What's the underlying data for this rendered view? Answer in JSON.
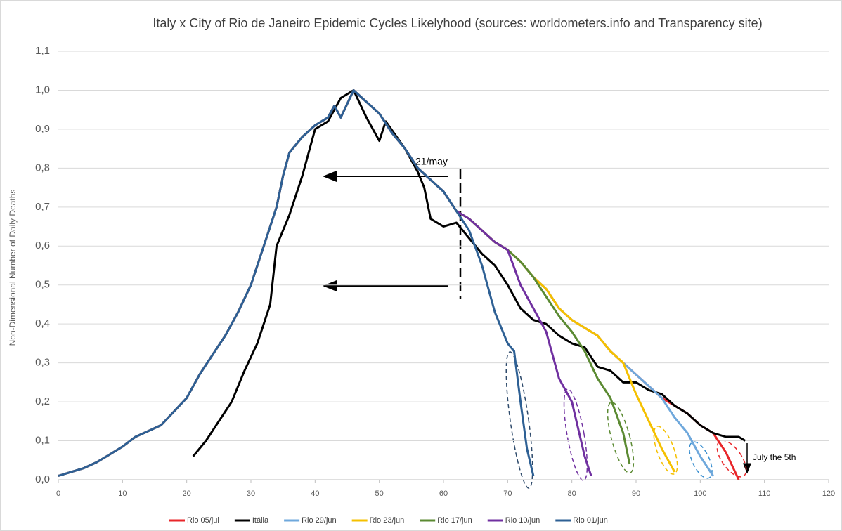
{
  "chart_data": {
    "type": "line",
    "title": "Italy x City of Rio de Janeiro Epidemic Cycles Likelyhood (sources: worldometers.info and Transparency site)",
    "y_label": "Non-Dimensional Number of Daily Deaths",
    "annotations": [
      "21/may",
      "July the 5th"
    ],
    "xlim": [
      0,
      120
    ],
    "xticks": [
      0,
      10,
      20,
      30,
      40,
      50,
      60,
      70,
      80,
      90,
      100,
      110,
      120
    ],
    "ylim": [
      0,
      1.1
    ],
    "yticks": [
      {
        "value": 0,
        "label": "0,0"
      },
      {
        "value": 0.1,
        "label": "0,1"
      },
      {
        "value": 0.2,
        "label": "0,2"
      },
      {
        "value": 0.3,
        "label": "0,3"
      },
      {
        "value": 0.4,
        "label": "0,4"
      },
      {
        "value": 0.5,
        "label": "0,5"
      },
      {
        "value": 0.6,
        "label": "0,6"
      },
      {
        "value": 0.7,
        "label": "0,7"
      },
      {
        "value": 0.8,
        "label": "0,8"
      },
      {
        "value": 0.9,
        "label": "0,9"
      },
      {
        "value": 1.0,
        "label": "1,0"
      },
      {
        "value": 1.1,
        "label": "1,1"
      }
    ],
    "grid": true,
    "series": [
      {
        "name": "Rio 05/jul",
        "color": "#e8262a",
        "x": [
          0,
          2,
          4,
          6,
          8,
          10,
          12,
          14,
          16,
          18,
          20,
          22,
          24,
          26,
          28,
          30,
          32,
          34,
          35,
          36,
          38,
          40,
          42,
          43,
          44,
          46,
          48,
          50,
          52,
          54,
          56,
          58,
          60,
          62,
          64,
          66,
          68,
          70,
          72,
          74,
          76,
          78,
          80,
          82,
          84,
          86,
          88,
          90,
          92,
          94,
          96,
          98,
          100,
          102,
          104,
          106
        ],
        "values": [
          0.01,
          0.02,
          0.03,
          0.045,
          0.065,
          0.085,
          0.11,
          0.125,
          0.14,
          0.175,
          0.21,
          0.27,
          0.32,
          0.37,
          0.43,
          0.5,
          0.6,
          0.7,
          0.78,
          0.84,
          0.88,
          0.91,
          0.93,
          0.96,
          0.93,
          1.0,
          0.97,
          0.94,
          0.89,
          0.85,
          0.8,
          0.77,
          0.74,
          0.69,
          0.67,
          0.64,
          0.61,
          0.59,
          0.56,
          0.52,
          0.49,
          0.44,
          0.41,
          0.39,
          0.37,
          0.33,
          0.3,
          0.27,
          0.24,
          0.21,
          0.19,
          0.17,
          0.14,
          0.12,
          0.07,
          0.0
        ]
      },
      {
        "name": "Itália",
        "color": "#000000",
        "x": [
          21,
          23,
          25,
          27,
          29,
          31,
          33,
          34,
          36,
          38,
          40,
          42,
          44,
          46,
          48,
          50,
          51,
          54,
          56,
          57,
          58,
          60,
          62,
          64,
          66,
          68,
          70,
          72,
          74,
          76,
          78,
          80,
          82,
          84,
          86,
          88,
          90,
          92,
          94,
          96,
          98,
          100,
          102,
          104,
          106,
          107
        ],
        "values": [
          0.06,
          0.1,
          0.15,
          0.2,
          0.28,
          0.35,
          0.45,
          0.6,
          0.68,
          0.78,
          0.9,
          0.92,
          0.98,
          1.0,
          0.93,
          0.87,
          0.92,
          0.85,
          0.79,
          0.75,
          0.67,
          0.65,
          0.66,
          0.62,
          0.58,
          0.55,
          0.5,
          0.44,
          0.41,
          0.4,
          0.37,
          0.35,
          0.34,
          0.29,
          0.28,
          0.25,
          0.25,
          0.23,
          0.22,
          0.19,
          0.17,
          0.14,
          0.12,
          0.11,
          0.11,
          0.1
        ]
      },
      {
        "name": "Rio 29/jun",
        "color": "#6fa8dc",
        "x": [
          0,
          2,
          4,
          6,
          8,
          10,
          12,
          14,
          16,
          18,
          20,
          22,
          24,
          26,
          28,
          30,
          32,
          34,
          35,
          36,
          38,
          40,
          42,
          43,
          44,
          46,
          48,
          50,
          52,
          54,
          56,
          58,
          60,
          62,
          64,
          66,
          68,
          70,
          72,
          74,
          76,
          78,
          80,
          82,
          84,
          86,
          88,
          90,
          92,
          94,
          96,
          98,
          100,
          102
        ],
        "values": [
          0.01,
          0.02,
          0.03,
          0.045,
          0.065,
          0.085,
          0.11,
          0.125,
          0.14,
          0.175,
          0.21,
          0.27,
          0.32,
          0.37,
          0.43,
          0.5,
          0.6,
          0.7,
          0.78,
          0.84,
          0.88,
          0.91,
          0.93,
          0.96,
          0.93,
          1.0,
          0.97,
          0.94,
          0.89,
          0.85,
          0.8,
          0.77,
          0.74,
          0.69,
          0.67,
          0.64,
          0.61,
          0.59,
          0.56,
          0.52,
          0.49,
          0.44,
          0.41,
          0.39,
          0.37,
          0.33,
          0.3,
          0.27,
          0.24,
          0.21,
          0.16,
          0.12,
          0.06,
          0.01
        ]
      },
      {
        "name": "Rio 23/jun",
        "color": "#f5c000",
        "x": [
          0,
          2,
          4,
          6,
          8,
          10,
          12,
          14,
          16,
          18,
          20,
          22,
          24,
          26,
          28,
          30,
          32,
          34,
          35,
          36,
          38,
          40,
          42,
          43,
          44,
          46,
          48,
          50,
          52,
          54,
          56,
          58,
          60,
          62,
          64,
          66,
          68,
          70,
          72,
          74,
          76,
          78,
          80,
          82,
          84,
          86,
          88,
          90,
          92,
          94,
          96
        ],
        "values": [
          0.01,
          0.02,
          0.03,
          0.045,
          0.065,
          0.085,
          0.11,
          0.125,
          0.14,
          0.175,
          0.21,
          0.27,
          0.32,
          0.37,
          0.43,
          0.5,
          0.6,
          0.7,
          0.78,
          0.84,
          0.88,
          0.91,
          0.93,
          0.96,
          0.93,
          1.0,
          0.97,
          0.94,
          0.89,
          0.85,
          0.8,
          0.77,
          0.74,
          0.69,
          0.67,
          0.64,
          0.61,
          0.59,
          0.56,
          0.52,
          0.49,
          0.44,
          0.41,
          0.39,
          0.37,
          0.33,
          0.3,
          0.22,
          0.15,
          0.08,
          0.02
        ]
      },
      {
        "name": "Rio 17/jun",
        "color": "#5b8a32",
        "x": [
          0,
          2,
          4,
          6,
          8,
          10,
          12,
          14,
          16,
          18,
          20,
          22,
          24,
          26,
          28,
          30,
          32,
          34,
          35,
          36,
          38,
          40,
          42,
          43,
          44,
          46,
          48,
          50,
          52,
          54,
          56,
          58,
          60,
          62,
          64,
          66,
          68,
          70,
          72,
          74,
          76,
          78,
          80,
          82,
          84,
          86,
          88,
          89
        ],
        "values": [
          0.01,
          0.02,
          0.03,
          0.045,
          0.065,
          0.085,
          0.11,
          0.125,
          0.14,
          0.175,
          0.21,
          0.27,
          0.32,
          0.37,
          0.43,
          0.5,
          0.6,
          0.7,
          0.78,
          0.84,
          0.88,
          0.91,
          0.93,
          0.96,
          0.93,
          1.0,
          0.97,
          0.94,
          0.89,
          0.85,
          0.8,
          0.77,
          0.74,
          0.69,
          0.67,
          0.64,
          0.61,
          0.59,
          0.56,
          0.52,
          0.47,
          0.42,
          0.38,
          0.33,
          0.26,
          0.21,
          0.12,
          0.04
        ]
      },
      {
        "name": "Rio 10/jun",
        "color": "#7030a0",
        "x": [
          0,
          2,
          4,
          6,
          8,
          10,
          12,
          14,
          16,
          18,
          20,
          22,
          24,
          26,
          28,
          30,
          32,
          34,
          35,
          36,
          38,
          40,
          42,
          43,
          44,
          46,
          48,
          50,
          52,
          54,
          56,
          58,
          60,
          62,
          64,
          66,
          68,
          70,
          72,
          74,
          76,
          78,
          80,
          82,
          83
        ],
        "values": [
          0.01,
          0.02,
          0.03,
          0.045,
          0.065,
          0.085,
          0.11,
          0.125,
          0.14,
          0.175,
          0.21,
          0.27,
          0.32,
          0.37,
          0.43,
          0.5,
          0.6,
          0.7,
          0.78,
          0.84,
          0.88,
          0.91,
          0.93,
          0.96,
          0.93,
          1.0,
          0.97,
          0.94,
          0.89,
          0.85,
          0.8,
          0.77,
          0.74,
          0.69,
          0.67,
          0.64,
          0.61,
          0.59,
          0.5,
          0.44,
          0.38,
          0.26,
          0.2,
          0.06,
          0.01
        ]
      },
      {
        "name": "Rio 01/jun",
        "color": "#2e6094",
        "x": [
          0,
          2,
          4,
          6,
          8,
          10,
          12,
          14,
          16,
          18,
          20,
          22,
          24,
          26,
          28,
          30,
          32,
          34,
          35,
          36,
          38,
          40,
          42,
          43,
          44,
          46,
          48,
          50,
          52,
          54,
          56,
          58,
          60,
          62,
          64,
          66,
          68,
          70,
          71,
          72,
          73,
          74
        ],
        "values": [
          0.01,
          0.02,
          0.03,
          0.045,
          0.065,
          0.085,
          0.11,
          0.125,
          0.14,
          0.175,
          0.21,
          0.27,
          0.32,
          0.37,
          0.43,
          0.5,
          0.6,
          0.7,
          0.78,
          0.84,
          0.88,
          0.91,
          0.93,
          0.96,
          0.93,
          1.0,
          0.97,
          0.94,
          0.89,
          0.85,
          0.8,
          0.77,
          0.74,
          0.69,
          0.64,
          0.55,
          0.43,
          0.35,
          0.33,
          0.2,
          0.08,
          0.01
        ]
      }
    ]
  }
}
